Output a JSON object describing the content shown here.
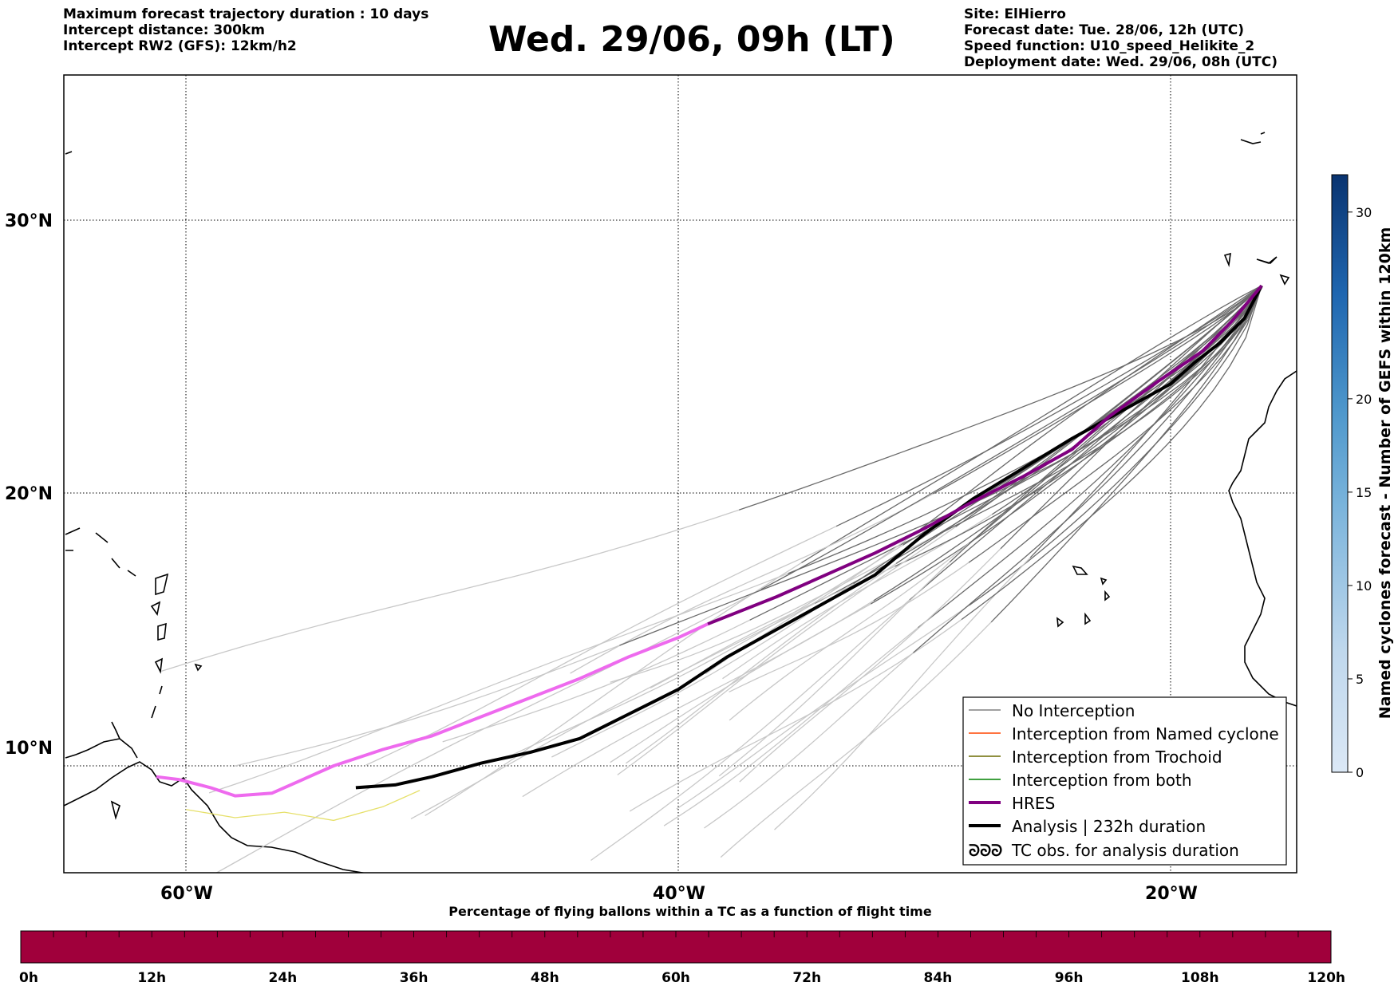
{
  "header_left": {
    "line1": "Maximum forecast trajectory duration : 10 days",
    "line2": "Intercept distance: 300km",
    "line3": "Intercept RW2 (GFS):  12km/h2"
  },
  "title": "Wed. 29/06, 09h (LT)",
  "header_right": {
    "line1": "Site: ElHierro",
    "line2": "Forecast date: Tue. 28/06, 12h (UTC)",
    "line3": "Speed function: U10_speed_Helikite_2",
    "line4": "Deployment date: Wed. 29/06, 08h (UTC)"
  },
  "map": {
    "lon_range": [
      -65,
      15
    ],
    "lat_range": [
      5.5,
      34.7
    ],
    "lon_ticks": [
      "60°W",
      "40°W",
      "20°W"
    ],
    "lat_ticks": [
      "30°N",
      "20°N",
      "10°N"
    ],
    "grid": true
  },
  "legend": {
    "items": [
      {
        "label": "No Interception",
        "color": "#808080"
      },
      {
        "label": "Interception from Named cyclone",
        "color": "#ff4500"
      },
      {
        "label": "Interception from Trochoid",
        "color": "#6b6b00"
      },
      {
        "label": "Interception from both",
        "color": "#008000"
      },
      {
        "label": "HRES",
        "color": "#800080"
      },
      {
        "label": "Analysis | 232h duration",
        "color": "#000000"
      },
      {
        "label": "TC obs. for analysis duration",
        "symbol": "ᘐᘐᘐ"
      }
    ]
  },
  "colorbar": {
    "label": "Named cyclones forecast - Number of GEFS within 120km",
    "ticks": [
      "0",
      "5",
      "10",
      "15",
      "20",
      "30"
    ],
    "min": 0,
    "max": 32
  },
  "bottom_bar": {
    "title": "Percentage of flying ballons within a TC as a function of flight time",
    "ticks": [
      "0h",
      "12h",
      "24h",
      "36h",
      "48h",
      "60h",
      "72h",
      "84h",
      "96h",
      "108h",
      "120h"
    ],
    "fill_color": "#a0003b"
  },
  "tracks": {
    "hres": [
      [
        -16.3,
        27.6
      ],
      [
        -17.5,
        26.3
      ],
      [
        -18.7,
        25.2
      ],
      [
        -20.5,
        24.1
      ],
      [
        -22.5,
        22.8
      ],
      [
        -24,
        21.6
      ],
      [
        -26,
        20.6
      ],
      [
        -28,
        19.7
      ],
      [
        -30,
        18.7
      ],
      [
        -32,
        17.8
      ],
      [
        -34,
        17.0
      ],
      [
        -36,
        16.2
      ],
      [
        -38.8,
        15.2
      ],
      [
        -40,
        14.7
      ],
      [
        -42,
        14.0
      ],
      [
        -44,
        13.2
      ],
      [
        -46,
        12.5
      ],
      [
        -48,
        11.8
      ],
      [
        -50,
        11.1
      ],
      [
        -52,
        10.6
      ],
      [
        -54,
        10.0
      ],
      [
        -56.5,
        9.0
      ],
      [
        -58,
        8.9
      ],
      [
        -59,
        9.2
      ],
      [
        -60.3,
        9.5
      ],
      [
        -61.2,
        9.6
      ]
    ],
    "analysis": [
      [
        -16.3,
        27.6
      ],
      [
        -17,
        26.4
      ],
      [
        -18,
        25.5
      ],
      [
        -19,
        24.8
      ],
      [
        -20,
        24.0
      ],
      [
        -22,
        23.0
      ],
      [
        -24,
        22.0
      ],
      [
        -26,
        20.9
      ],
      [
        -28,
        19.8
      ],
      [
        -30,
        18.5
      ],
      [
        -32,
        17.0
      ],
      [
        -34,
        16.0
      ],
      [
        -36,
        15.0
      ],
      [
        -38,
        14.0
      ],
      [
        -40,
        12.8
      ],
      [
        -42,
        11.9
      ],
      [
        -44,
        11.0
      ],
      [
        -46,
        10.5
      ],
      [
        -48,
        10.1
      ],
      [
        -50,
        9.6
      ],
      [
        -51.5,
        9.3
      ],
      [
        -53.1,
        9.2
      ]
    ],
    "ensemble_count": 30
  }
}
